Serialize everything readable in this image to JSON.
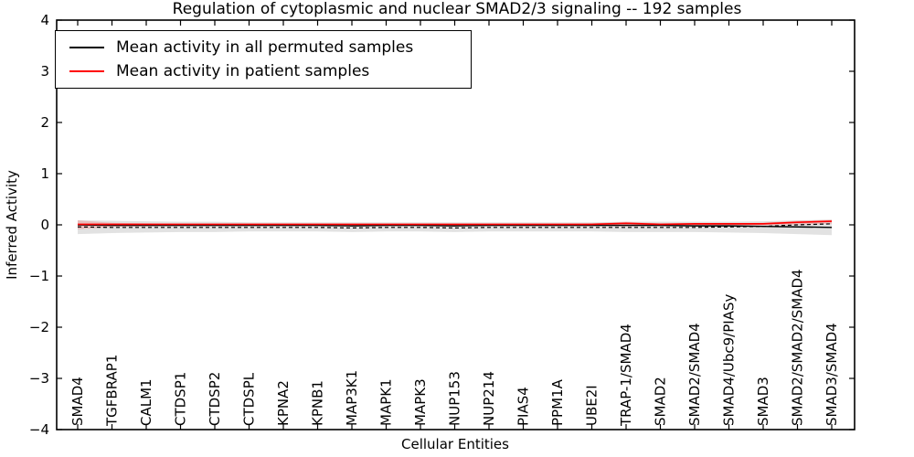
{
  "chart_data": {
    "type": "line",
    "title": "Regulation of cytoplasmic and nuclear SMAD2/3 signaling -- 192 samples",
    "xlabel": "Cellular Entities",
    "ylabel": "Inferred Activity",
    "grid": false,
    "legend_position": "upper left",
    "ylim": [
      -4,
      4
    ],
    "yticks": {
      "values": [
        4,
        3,
        2,
        1,
        0,
        -1,
        -2,
        -3,
        -4
      ],
      "labels": [
        "4",
        "3",
        "2",
        "1",
        "0",
        "−1",
        "−2",
        "−3",
        "−4"
      ]
    },
    "categories": [
      "SMAD4",
      "TGFBRAP1",
      "CALM1",
      "CTDSP1",
      "CTDSP2",
      "CTDSPL",
      "KPNA2",
      "KPNB1",
      "MAP3K1",
      "MAPK1",
      "MAPK3",
      "NUP153",
      "NUP214",
      "PIAS4",
      "PPM1A",
      "UBE2I",
      "TRAP-1/SMAD4",
      "SMAD2",
      "SMAD2/SMAD4",
      "SMAD4/Ubc9/PIASy",
      "SMAD3",
      "SMAD2/SMAD2/SMAD4",
      "SMAD3/SMAD4"
    ],
    "series": [
      {
        "label": "Mean activity in all permuted samples",
        "color": "#000000",
        "style": "solid",
        "in_legend": true,
        "values": [
          0.0,
          -0.01,
          -0.01,
          -0.01,
          -0.01,
          -0.01,
          -0.01,
          -0.01,
          -0.02,
          -0.01,
          -0.01,
          -0.02,
          -0.01,
          -0.01,
          -0.01,
          -0.01,
          -0.01,
          -0.01,
          -0.02,
          -0.02,
          -0.03,
          -0.04,
          -0.05
        ]
      },
      {
        "label": "Mean activity in patient samples",
        "color": "#ff0000",
        "style": "solid",
        "in_legend": true,
        "values": [
          0.01,
          0.01,
          0.01,
          0.01,
          0.01,
          0.01,
          0.01,
          0.01,
          0.01,
          0.01,
          0.01,
          0.01,
          0.01,
          0.01,
          0.01,
          0.01,
          0.03,
          0.01,
          0.02,
          0.02,
          0.02,
          0.05,
          0.07
        ]
      },
      {
        "label": "",
        "color": "#000000",
        "style": "dashed",
        "in_legend": false,
        "values": [
          -0.04,
          -0.05,
          -0.05,
          -0.05,
          -0.05,
          -0.05,
          -0.05,
          -0.05,
          -0.06,
          -0.05,
          -0.05,
          -0.06,
          -0.05,
          -0.05,
          -0.05,
          -0.05,
          -0.05,
          -0.05,
          -0.05,
          -0.04,
          -0.03,
          0.0,
          0.02
        ]
      }
    ],
    "bands": [
      {
        "name": "permuted-samples-range",
        "color": "#bfbfbf",
        "opacity": 0.45,
        "upper": [
          0.09,
          0.08,
          0.07,
          0.06,
          0.06,
          0.05,
          0.05,
          0.05,
          0.05,
          0.05,
          0.05,
          0.05,
          0.05,
          0.05,
          0.05,
          0.05,
          0.06,
          0.06,
          0.06,
          0.06,
          0.07,
          0.09,
          0.1
        ],
        "lower": [
          -0.18,
          -0.16,
          -0.15,
          -0.14,
          -0.14,
          -0.13,
          -0.13,
          -0.13,
          -0.14,
          -0.13,
          -0.13,
          -0.14,
          -0.13,
          -0.13,
          -0.13,
          -0.13,
          -0.14,
          -0.14,
          -0.14,
          -0.15,
          -0.16,
          -0.18,
          -0.2
        ]
      },
      {
        "name": "patient-samples-range",
        "color": "#ff0000",
        "opacity": 0.16,
        "upper": [
          0.09,
          0.04,
          0.03,
          0.02,
          0.02,
          0.02,
          0.02,
          0.02,
          0.02,
          0.02,
          0.02,
          0.02,
          0.02,
          0.02,
          0.02,
          0.03,
          0.06,
          0.03,
          0.03,
          0.03,
          0.04,
          0.08,
          0.1
        ],
        "lower": [
          -0.09,
          -0.04,
          -0.03,
          -0.02,
          -0.02,
          -0.02,
          -0.02,
          -0.02,
          -0.02,
          -0.02,
          -0.02,
          -0.02,
          -0.02,
          -0.02,
          -0.02,
          -0.02,
          -0.03,
          -0.02,
          -0.02,
          -0.02,
          -0.01,
          0.0,
          0.02
        ]
      }
    ]
  }
}
